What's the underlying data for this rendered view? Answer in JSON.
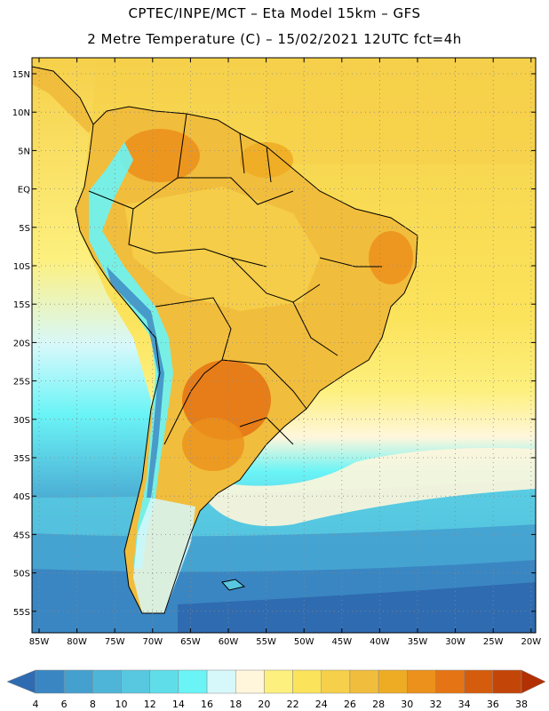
{
  "header": {
    "line1": "CPTEC/INPE/MCT –  Eta Model 15km – GFS",
    "line2": "2 Metre Temperature (C) – 15/02/2021 12UTC fct=4h"
  },
  "map": {
    "lat_labels": [
      "15N",
      "10N",
      "5N",
      "EQ",
      "5S",
      "10S",
      "15S",
      "20S",
      "25S",
      "30S",
      "35S",
      "40S",
      "45S",
      "50S",
      "55S"
    ],
    "lon_labels": [
      "85W",
      "80W",
      "75W",
      "70W",
      "65W",
      "60W",
      "55W",
      "50W",
      "45W",
      "40W",
      "35W",
      "30W",
      "25W",
      "20W"
    ],
    "region": "South America"
  },
  "colorbar": {
    "labels": [
      "4",
      "6",
      "8",
      "10",
      "12",
      "14",
      "16",
      "18",
      "20",
      "22",
      "24",
      "26",
      "28",
      "30",
      "32",
      "34",
      "36",
      "38"
    ],
    "colors": [
      "#2f6bb0",
      "#3a86c3",
      "#44a0cf",
      "#4fb5d8",
      "#57c8e0",
      "#5fdde9",
      "#6af4f6",
      "#d7f8fb",
      "#fff6dc",
      "#fdf07e",
      "#fbe35b",
      "#f6d04a",
      "#f1bd3c",
      "#eeac24",
      "#ec911c",
      "#e57514",
      "#d55c0c",
      "#c44508",
      "#b33003"
    ]
  }
}
